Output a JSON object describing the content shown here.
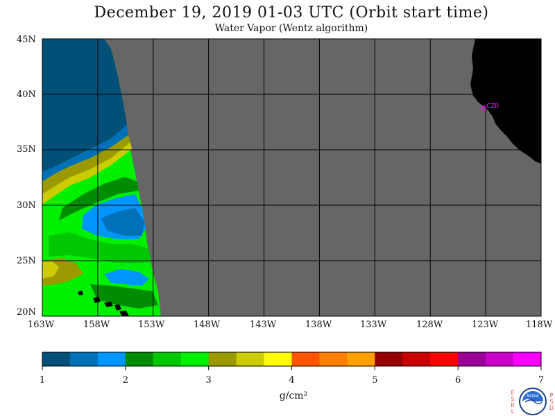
{
  "title": "December 19, 2019  01-03 UTC  (Orbit start time)",
  "subtitle": "Water Vapor (Wentz algorithm)",
  "map": {
    "lon_range": [
      -163,
      -118
    ],
    "lat_range": [
      20,
      45
    ],
    "lat_labels": [
      "45N",
      "40N",
      "35N",
      "30N",
      "25N",
      "20N"
    ],
    "lon_labels": [
      "163W",
      "158W",
      "153W",
      "148W",
      "143W",
      "138W",
      "133W",
      "128W",
      "123W",
      "118W"
    ],
    "no_data_color": "#666666",
    "land_color": "#000000",
    "grid_color": "#000000",
    "station": {
      "label": "CZD",
      "lat": 38.6,
      "lon": -123.2,
      "color": "#ff00ff"
    }
  },
  "colorbar": {
    "ticks": [
      "1",
      "2",
      "3",
      "4",
      "5",
      "6",
      "7"
    ],
    "unit": "g/cm²",
    "colors": [
      "#00507a",
      "#0070b8",
      "#0096ff",
      "#008c00",
      "#00c800",
      "#00f000",
      "#9a9a00",
      "#cccc00",
      "#ffff00",
      "#ff5500",
      "#ff8000",
      "#ffa000",
      "#960000",
      "#c80000",
      "#ff0000",
      "#9a009a",
      "#cc00cc",
      "#ff00ff"
    ]
  },
  "logo": {
    "left_letters": [
      "E",
      "S",
      "R",
      "L"
    ],
    "right_letters": [
      "P",
      "S",
      "D"
    ],
    "center_text": "NOAA"
  }
}
